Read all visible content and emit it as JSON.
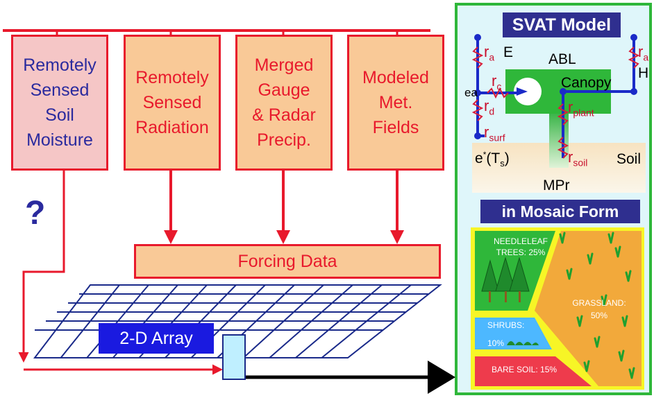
{
  "inputs": {
    "soil_moisture": "Remotely\nSensed\nSoil\nMoisture",
    "radiation": "Remotely\nSensed\nRadiation",
    "precip": "Merged\nGauge\n& Radar\nPrecip.",
    "met_fields": "Modeled\nMet.\nFields"
  },
  "question_mark": "?",
  "forcing_data": "Forcing Data",
  "array_label": "2-D Array",
  "svat": {
    "title": "SVAT Model",
    "abl": "ABL",
    "canopy": "Canopy",
    "soil": "Soil",
    "mpr": "MPr",
    "E": "E",
    "H": "H",
    "ea": "ea",
    "r_a": "r",
    "r_a_sub": "a",
    "r_c": "r",
    "r_c_sub": "c",
    "r_d": "r",
    "r_d_sub": "d",
    "r_plant": "r",
    "r_plant_sub": "plant",
    "r_surf": "r",
    "r_surf_sub": "surf",
    "r_soil": "r",
    "r_soil_sub": "soil",
    "estar": "e",
    "estar_sup": "*",
    "ts": "(T",
    "ts_sub": "s",
    "ts_close": ")"
  },
  "mosaic": {
    "title": "in Mosaic Form",
    "needleleaf": "NEEDLELEAF",
    "trees": "TREES:  25%",
    "grassland": "GRASSLAND:",
    "grassland_pct": "50%",
    "shrubs": "SHRUBS:",
    "shrubs_pct": "10%",
    "bare_soil": "BARE SOIL:  15%"
  },
  "colors": {
    "red": "#e8192c",
    "navy": "#2a2a9e",
    "orange": "#f9c997",
    "pink": "#f5c6c6",
    "panel_green": "#2fb73a",
    "panel_bg": "#dff6fa",
    "title_bg": "#2f2f8f",
    "grass": "#f2a93b",
    "shrub": "#4db8ff",
    "bare": "#ee3b4c",
    "yellow": "#f7f526"
  }
}
